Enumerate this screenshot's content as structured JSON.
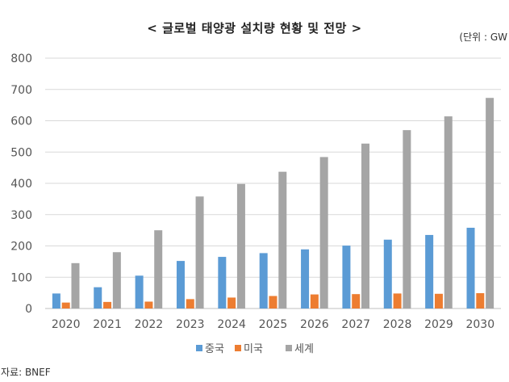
{
  "chart_data": {
    "type": "bar",
    "title": "< 글로벌 태양광 설치량 현황 및 전망 >",
    "unit_note": "(단위 : GW",
    "source": "자료: BNEF",
    "categories": [
      "2020",
      "2021",
      "2022",
      "2023",
      "2024",
      "2025",
      "2026",
      "2027",
      "2028",
      "2029",
      "2030"
    ],
    "series": [
      {
        "name": "중국",
        "color": "#5b9bd5",
        "values": [
          48,
          68,
          105,
          152,
          165,
          177,
          189,
          201,
          220,
          235,
          258
        ]
      },
      {
        "name": "미국",
        "color": "#ed7d31",
        "values": [
          19,
          21,
          22,
          30,
          35,
          40,
          45,
          46,
          48,
          47,
          49
        ]
      },
      {
        "name": "세계",
        "color": "#a5a5a5",
        "values": [
          145,
          180,
          250,
          358,
          398,
          437,
          484,
          527,
          570,
          614,
          673
        ]
      }
    ],
    "ylim": [
      0,
      800
    ],
    "yticks": [
      "0",
      "100",
      "200",
      "300",
      "400",
      "500",
      "600",
      "700",
      "800"
    ],
    "grid": true,
    "legend_position": "bottom"
  }
}
